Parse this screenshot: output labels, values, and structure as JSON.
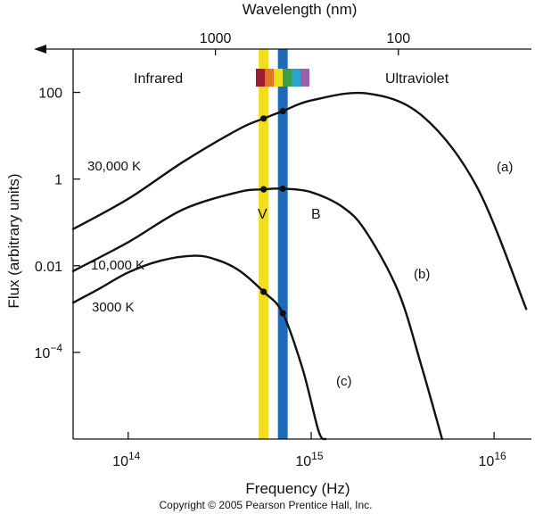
{
  "chart_data": {
    "type": "line",
    "title": "",
    "xlabel": "Frequency (Hz)",
    "ylabel": "Flux (arbitrary units)",
    "top_axis_label": "Wavelength (nm)",
    "x_scale": "log",
    "y_scale": "log",
    "xlim": [
      50000000000000.0,
      1.6e+16
    ],
    "ylim": [
      1e-06,
      1000
    ],
    "x_ticks": [
      {
        "value": 100000000000000.0,
        "base": "10",
        "exp": "14"
      },
      {
        "value": 1000000000000000.0,
        "base": "10",
        "exp": "15"
      },
      {
        "value": 1e+16,
        "base": "10",
        "exp": "16"
      }
    ],
    "y_ticks": [
      {
        "value": 100,
        "base": "100",
        "exp": ""
      },
      {
        "value": 1,
        "base": "1",
        "exp": ""
      },
      {
        "value": 0.01,
        "base": "0.01",
        "exp": ""
      },
      {
        "value": 0.0001,
        "base": "10",
        "exp": "−4"
      }
    ],
    "top_ticks": [
      {
        "wavelength_nm": 1000,
        "label": "1000"
      },
      {
        "wavelength_nm": 100,
        "label": "100"
      }
    ],
    "region_labels": {
      "infrared": "Infrared",
      "ultraviolet": "Ultraviolet"
    },
    "series": [
      {
        "name": "30,000 K",
        "tag": "(a)",
        "x": [
          50000000000000.0,
          100000000000000.0,
          200000000000000.0,
          400000000000000.0,
          550000000000000.0,
          700000000000000.0,
          1000000000000000.0,
          2000000000000000.0,
          4000000000000000.0,
          8000000000000000.0,
          1.5e+16
        ],
        "y": [
          0.07,
          0.35,
          2.5,
          14,
          25,
          37,
          65,
          95,
          30,
          0.7,
          0.001
        ]
      },
      {
        "name": "10,000 K",
        "tag": "(b)",
        "x": [
          50000000000000.0,
          100000000000000.0,
          200000000000000.0,
          400000000000000.0,
          550000000000000.0,
          700000000000000.0,
          1000000000000000.0,
          1500000000000000.0,
          2000000000000000.0,
          3000000000000000.0,
          4000000000000000.0,
          5200000000000000.0
        ],
        "y": [
          0.0075,
          0.035,
          0.2,
          0.5,
          0.58,
          0.6,
          0.5,
          0.22,
          0.06,
          0.0025,
          5e-05,
          1e-06
        ]
      },
      {
        "name": "3000 K",
        "tag": "(c)",
        "x": [
          50000000000000.0,
          70000000000000.0,
          100000000000000.0,
          150000000000000.0,
          230000000000000.0,
          300000000000000.0,
          400000000000000.0,
          550000000000000.0,
          700000000000000.0,
          900000000000000.0,
          1100000000000000.0,
          1200000000000000.0
        ],
        "y": [
          0.0014,
          0.003,
          0.007,
          0.013,
          0.017,
          0.014,
          0.008,
          0.0025,
          0.0008,
          4e-05,
          1.5e-06,
          1e-06
        ]
      }
    ],
    "markers": [
      {
        "x": 550000000000000.0,
        "y": 25
      },
      {
        "x": 700000000000000.0,
        "y": 37
      },
      {
        "x": 550000000000000.0,
        "y": 0.58
      },
      {
        "x": 700000000000000.0,
        "y": 0.6
      },
      {
        "x": 550000000000000.0,
        "y": 0.0025
      },
      {
        "x": 700000000000000.0,
        "y": 0.0008
      }
    ],
    "filter_bands": [
      {
        "name": "V",
        "x": 550000000000000.0,
        "color": "#f2dd1e"
      },
      {
        "name": "B",
        "x": 700000000000000.0,
        "color": "#1e6ab8"
      }
    ],
    "spectrum_colors": [
      "#9e1b32",
      "#e47425",
      "#f2dd1e",
      "#3aa041",
      "#2aa3cf",
      "#9b5fa8"
    ],
    "copyright": "Copyright © 2005 Pearson Prentice Hall, Inc."
  }
}
